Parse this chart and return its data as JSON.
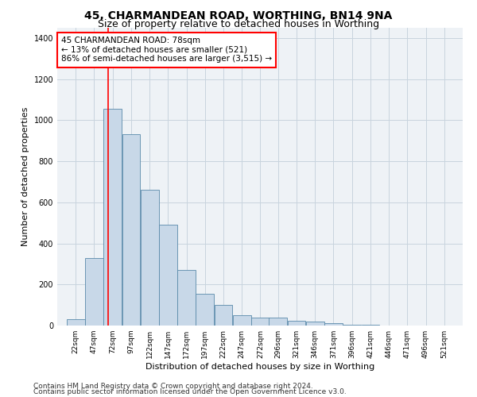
{
  "title": "45, CHARMANDEAN ROAD, WORTHING, BN14 9NA",
  "subtitle": "Size of property relative to detached houses in Worthing",
  "xlabel": "Distribution of detached houses by size in Worthing",
  "ylabel": "Number of detached properties",
  "footer1": "Contains HM Land Registry data © Crown copyright and database right 2024.",
  "footer2": "Contains public sector information licensed under the Open Government Licence v3.0.",
  "bar_color": "#c8d8e8",
  "bar_edge_color": "#5a8aaa",
  "grid_color": "#c8d4de",
  "background_color": "#eef2f6",
  "annotation_line1": "45 CHARMANDEAN ROAD: 78sqm",
  "annotation_line2": "← 13% of detached houses are smaller (521)",
  "annotation_line3": "86% of semi-detached houses are larger (3,515) →",
  "redline_x": 78,
  "categories": [
    "22sqm",
    "47sqm",
    "72sqm",
    "97sqm",
    "122sqm",
    "147sqm",
    "172sqm",
    "197sqm",
    "222sqm",
    "247sqm",
    "272sqm",
    "296sqm",
    "321sqm",
    "346sqm",
    "371sqm",
    "396sqm",
    "421sqm",
    "446sqm",
    "471sqm",
    "496sqm",
    "521sqm"
  ],
  "bin_starts": [
    22,
    47,
    72,
    97,
    122,
    147,
    172,
    197,
    222,
    247,
    272,
    296,
    321,
    346,
    371,
    396,
    421,
    446,
    471,
    496,
    521
  ],
  "bin_width": 25,
  "values": [
    30,
    330,
    1055,
    930,
    660,
    490,
    270,
    155,
    100,
    50,
    40,
    40,
    25,
    20,
    10,
    5,
    3,
    1,
    0,
    0,
    0
  ],
  "ylim": [
    0,
    1450
  ],
  "yticks": [
    0,
    200,
    400,
    600,
    800,
    1000,
    1200,
    1400
  ],
  "title_fontsize": 10,
  "subtitle_fontsize": 9,
  "axis_label_fontsize": 8,
  "tick_fontsize": 7,
  "footer_fontsize": 6.5,
  "annotation_fontsize": 7.5
}
